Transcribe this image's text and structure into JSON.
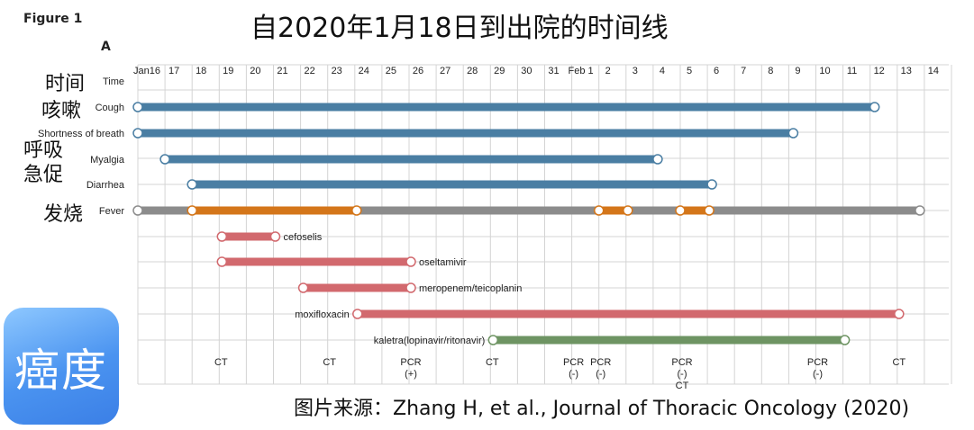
{
  "header": {
    "figure_label": "Figure 1",
    "panel_label": "A",
    "title": "自2020年1月18日到出院的时间线"
  },
  "chinese_labels": {
    "time": "时间",
    "cough": "咳嗽",
    "shortness_of_breath": "呼吸\n急促",
    "fever": "发烧"
  },
  "source_text": "图片来源：Zhang H, et al., Journal of Thoracic Oncology (2020)",
  "logo": {
    "text": "癌度",
    "icon": "brand-logo-badge"
  },
  "colors": {
    "symptom": "#4a7ea3",
    "fever_base": "#8c8c8c",
    "fever_active": "#d4761a",
    "drug": "#d2696e",
    "kaletra": "#6e9463",
    "grid": "#d4d4d4"
  },
  "chart_data": {
    "type": "timeline",
    "title": "自2020年1月18日到出院的时间线",
    "x_axis_label": "Time",
    "x_ticks": [
      "Jan16",
      "17",
      "18",
      "19",
      "20",
      "21",
      "22",
      "23",
      "24",
      "25",
      "26",
      "27",
      "28",
      "29",
      "30",
      "31",
      "Feb 1",
      "2",
      "3",
      "4",
      "5",
      "6",
      "7",
      "8",
      "9",
      "10",
      "11",
      "12",
      "13",
      "14"
    ],
    "symptoms": [
      {
        "name": "Cough",
        "start": "2020-01-16",
        "end": "2020-02-12",
        "color": "#4a7ea3"
      },
      {
        "name": "Shortness of breath",
        "start": "2020-01-16",
        "end": "2020-02-09",
        "color": "#4a7ea3"
      },
      {
        "name": "Myalgia",
        "start": "2020-01-17",
        "end": "2020-02-04",
        "color": "#4a7ea3"
      },
      {
        "name": "Diarrhea",
        "start": "2020-01-18",
        "end": "2020-02-06",
        "color": "#4a7ea3"
      }
    ],
    "fever": {
      "name": "Fever",
      "start": "2020-01-16",
      "end": "2020-02-14",
      "active_periods": [
        {
          "start": "2020-01-18",
          "end": "2020-01-24"
        },
        {
          "start": "2020-02-02",
          "end": "2020-02-03"
        },
        {
          "start": "2020-02-05",
          "end": "2020-02-06"
        }
      ]
    },
    "treatments": [
      {
        "name": "cefoselis",
        "start": "2020-01-19",
        "end": "2020-01-21",
        "label_side": "right",
        "color": "#d2696e"
      },
      {
        "name": "oseltamivir",
        "start": "2020-01-19",
        "end": "2020-01-26",
        "label_side": "right",
        "color": "#d2696e"
      },
      {
        "name": "meropenem/teicoplanin",
        "start": "2020-01-22",
        "end": "2020-01-26",
        "label_side": "right",
        "color": "#d2696e"
      },
      {
        "name": "moxifloxacin",
        "start": "2020-01-24",
        "end": "2020-02-13",
        "label_side": "left",
        "color": "#d2696e"
      },
      {
        "name": "kaletra(lopinavir/ritonavir)",
        "start": "2020-01-29",
        "end": "2020-02-11",
        "label_side": "left",
        "color": "#6e9463"
      }
    ],
    "events": [
      {
        "date": "2020-01-19",
        "lines": [
          "CT"
        ]
      },
      {
        "date": "2020-01-23",
        "lines": [
          "CT"
        ]
      },
      {
        "date": "2020-01-26",
        "lines": [
          "PCR",
          "(+)"
        ]
      },
      {
        "date": "2020-01-29",
        "lines": [
          "CT"
        ]
      },
      {
        "date": "2020-02-01",
        "lines": [
          "PCR",
          "(-)"
        ]
      },
      {
        "date": "2020-02-02",
        "lines": [
          "PCR",
          "(-)"
        ]
      },
      {
        "date": "2020-02-05",
        "lines": [
          "PCR",
          "(-)",
          "CT"
        ]
      },
      {
        "date": "2020-02-10",
        "lines": [
          "PCR",
          "(-)"
        ]
      },
      {
        "date": "2020-02-13",
        "lines": [
          "CT"
        ]
      }
    ]
  }
}
